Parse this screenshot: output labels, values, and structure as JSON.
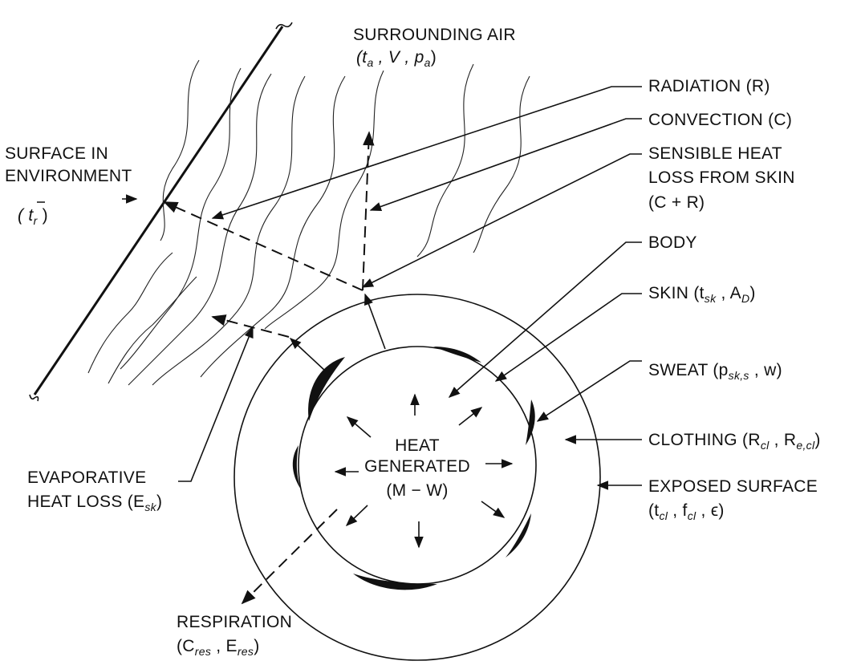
{
  "labels": {
    "surrounding_air": {
      "line1": "SURROUNDING AIR",
      "line2": "(t",
      "sub_a": "a",
      "mid": " ,  V ,  p",
      "end": ")"
    },
    "surface_env": {
      "line1": "SURFACE IN",
      "line2": "ENVIRONMENT",
      "line3": "( t",
      "sub": "r",
      "end": " )"
    },
    "radiation": "RADIATION (R)",
    "convection": "CONVECTION (C)",
    "sensible": {
      "line1": "SENSIBLE HEAT",
      "line2": "LOSS FROM SKIN",
      "line3": "(C + R)"
    },
    "body": "BODY",
    "skin": {
      "pre": "SKIN (t",
      "sub1": "sk",
      "mid": " ,  A",
      "sub2": "D",
      "end": ")"
    },
    "sweat": {
      "pre": "SWEAT (p",
      "sub1": "sk,s",
      "mid": " ,  w)"
    },
    "clothing": {
      "pre": "CLOTHING (R",
      "sub1": "cl",
      "mid": " ,  R",
      "sub2": "e,cl",
      "end": ")"
    },
    "exposed": {
      "line1": "EXPOSED SURFACE",
      "pre": "(t",
      "sub1": "cl",
      "mid": " ,  f",
      "sub2": "cl",
      "end": " ,  ϵ)"
    },
    "heat_generated": {
      "line1": "HEAT",
      "line2": "GENERATED",
      "line3": "(M − W)"
    },
    "evaporative": {
      "line1": "EVAPORATIVE",
      "pre": "HEAT LOSS (E",
      "sub": "sk",
      "end": ")"
    },
    "respiration": {
      "line1": "RESPIRATION",
      "pre": "(C",
      "sub1": "res",
      "mid": " ,  E",
      "sub2": "res",
      "end": ")"
    }
  }
}
